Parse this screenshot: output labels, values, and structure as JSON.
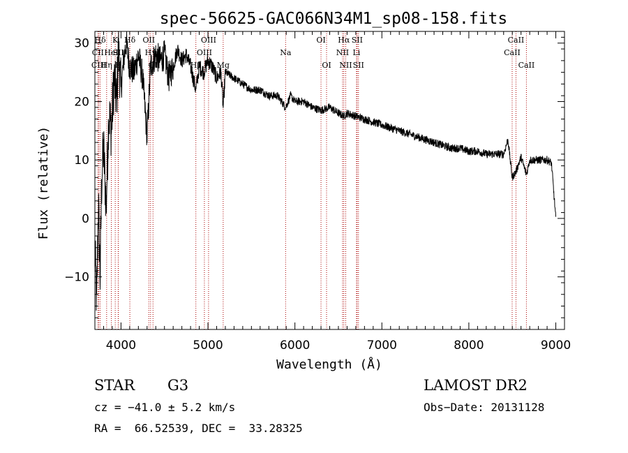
{
  "chart_data": {
    "type": "line",
    "title": "spec-56625-GAC066N34M1_sp08-158.fits",
    "xlabel": "Wavelength (Å)",
    "ylabel": "Flux (relative)",
    "xlim": [
      3700,
      9100
    ],
    "ylim": [
      -19,
      32
    ],
    "x_ticks": [
      4000,
      5000,
      6000,
      7000,
      8000,
      9000
    ],
    "y_ticks": [
      -10,
      0,
      10,
      20,
      30
    ],
    "grid": false,
    "line_color": "#000000",
    "marker_color": "#aa0000",
    "series": [
      {
        "x": [
          3700,
          3720,
          3740,
          3760,
          3780,
          3800,
          3830,
          3860,
          3890,
          3920,
          3950,
          3970,
          4000,
          4030,
          4060,
          4100,
          4150,
          4200,
          4250,
          4300,
          4340,
          4400,
          4450,
          4500,
          4550,
          4600,
          4650,
          4700,
          4750,
          4800,
          4861,
          4900,
          4950,
          5000,
          5050,
          5100,
          5150,
          5175,
          5200,
          5300,
          5400,
          5500,
          5600,
          5700,
          5800,
          5893,
          5950,
          6000,
          6100,
          6200,
          6300,
          6400,
          6500,
          6563,
          6600,
          6700,
          6800,
          6900,
          7000,
          7100,
          7200,
          7300,
          7400,
          7500,
          7600,
          7700,
          7800,
          7900,
          8000,
          8100,
          8200,
          8300,
          8400,
          8450,
          8498,
          8542,
          8600,
          8662,
          8700,
          8800,
          8900,
          8950,
          9000
        ],
        "y": [
          -5,
          -15,
          3,
          -10,
          8,
          12,
          2,
          18,
          15,
          24,
          20,
          29,
          22,
          27,
          30,
          26,
          25,
          28,
          24,
          14,
          26,
          28,
          27,
          28,
          24,
          26,
          29,
          27,
          28,
          26,
          22,
          26,
          25,
          27,
          26,
          24,
          25,
          19,
          25,
          24,
          23,
          22,
          22,
          21,
          21,
          19,
          21,
          20,
          20,
          19,
          18.5,
          19,
          18,
          17.5,
          18,
          17.5,
          17,
          16.5,
          16,
          15.5,
          15,
          14.5,
          14,
          13.5,
          13,
          12.5,
          12,
          12,
          11.5,
          11.5,
          11,
          11,
          11,
          13.5,
          7,
          8,
          10.5,
          7.5,
          10,
          10,
          10,
          9.5,
          0
        ]
      }
    ],
    "lines": [
      {
        "label": "Hδ",
        "x": 3760,
        "row": 1
      },
      {
        "label": "CII",
        "x": 3735,
        "row": 2
      },
      {
        "label": "CIII",
        "x": 3745,
        "row": 3
      },
      {
        "label": "Hη",
        "x": 3835,
        "row": 3
      },
      {
        "label": "HeI",
        "x": 3889,
        "row": 2
      },
      {
        "label": "K",
        "x": 3934,
        "row": 1
      },
      {
        "label": "SII",
        "x": 3970,
        "row": 2
      },
      {
        "label": "H",
        "x": 3968,
        "row": 3
      },
      {
        "label": "Hδ",
        "x": 4102,
        "row": 1
      },
      {
        "label": "OII",
        "x": 4320,
        "row": 1
      },
      {
        "label": "Hγ",
        "x": 4340,
        "row": 2
      },
      {
        "label": "OI",
        "x": 4368,
        "row": 3
      },
      {
        "label": "Hβ",
        "x": 4861,
        "row": 3
      },
      {
        "label": "OIII",
        "x": 4959,
        "row": 2
      },
      {
        "label": "OIII",
        "x": 5007,
        "row": 1
      },
      {
        "label": "Mg",
        "x": 5175,
        "row": 3
      },
      {
        "label": "Na",
        "x": 5893,
        "row": 2
      },
      {
        "label": "OI",
        "x": 6300,
        "row": 1
      },
      {
        "label": "OI",
        "x": 6364,
        "row": 3
      },
      {
        "label": "NII",
        "x": 6548,
        "row": 2
      },
      {
        "label": "Hα",
        "x": 6563,
        "row": 1
      },
      {
        "label": "NII",
        "x": 6584,
        "row": 3
      },
      {
        "label": "SII",
        "x": 6716,
        "row": 1
      },
      {
        "label": "Li",
        "x": 6708,
        "row": 2
      },
      {
        "label": "SII",
        "x": 6731,
        "row": 3
      },
      {
        "label": "CaII",
        "x": 8498,
        "row": 2
      },
      {
        "label": "CaII",
        "x": 8542,
        "row": 1
      },
      {
        "label": "CaII",
        "x": 8662,
        "row": 3
      }
    ]
  },
  "info": {
    "object_class": "STAR",
    "subclass": "G3",
    "survey": "LAMOST DR2",
    "cz": "cz = −41.0 ± 5.2 km/s",
    "obs_date": "Obs−Date: 20131128",
    "radec": "RA =  66.52539, DEC =  33.28325"
  }
}
